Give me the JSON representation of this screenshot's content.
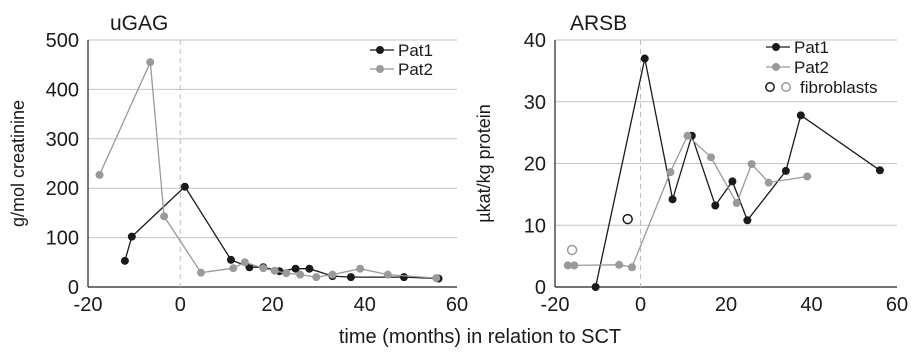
{
  "figure": {
    "shared_xlabel": "time (months) in relation to SCT"
  },
  "chart_data": [
    {
      "type": "line",
      "title": "uGAG",
      "xlabel": "",
      "ylabel": "g/mol creatinine",
      "xlim": [
        -20,
        60
      ],
      "ylim": [
        0,
        500
      ],
      "xticks": [
        -20,
        0,
        20,
        40,
        60
      ],
      "yticks": [
        0,
        100,
        200,
        300,
        400,
        500
      ],
      "grid": "horizontal",
      "reference_line_x": 0,
      "legend_position": "top-right",
      "series": [
        {
          "name": "Pat1",
          "color": "#1a1a1a",
          "marker": "filled-circle",
          "x": [
            -12,
            -10.5,
            1,
            11,
            15,
            18,
            21.5,
            25,
            28,
            33,
            37,
            48.5,
            56
          ],
          "y": [
            53,
            102,
            203,
            55,
            40,
            40,
            32,
            37,
            37,
            22,
            20,
            20,
            17
          ]
        },
        {
          "name": "Pat2",
          "color": "#9a9a9a",
          "marker": "filled-circle",
          "x": [
            -17.5,
            -6.5,
            -3.5,
            4.5,
            11.5,
            14,
            18,
            20.5,
            23,
            26,
            29.5,
            33,
            39,
            45,
            55.5
          ],
          "y": [
            227,
            455,
            143,
            29,
            38,
            50,
            38,
            33,
            28,
            25,
            20,
            25,
            37,
            25,
            18
          ]
        }
      ]
    },
    {
      "type": "line",
      "title": "ARSB",
      "xlabel": "",
      "ylabel": "µkat/kg protein",
      "xlim": [
        -20,
        60
      ],
      "ylim": [
        0,
        40
      ],
      "xticks": [
        -20,
        0,
        20,
        40,
        60
      ],
      "yticks": [
        0,
        10,
        20,
        30,
        40
      ],
      "grid": "horizontal",
      "reference_line_x": 0,
      "legend_position": "top-right",
      "series": [
        {
          "name": "Pat1",
          "color": "#1a1a1a",
          "marker": "filled-circle",
          "x": [
            -10.5,
            1,
            7.5,
            12,
            17.5,
            21.5,
            25,
            34,
            37.5,
            56
          ],
          "y": [
            0,
            37,
            14.2,
            24.5,
            13.2,
            17.1,
            10.8,
            18.8,
            27.8,
            18.9
          ]
        },
        {
          "name": "Pat2",
          "color": "#9a9a9a",
          "marker": "filled-circle",
          "x": [
            -17,
            -15.5,
            -5,
            -2,
            7,
            11,
            16.5,
            22.5,
            26,
            30,
            39
          ],
          "y": [
            3.5,
            3.5,
            3.6,
            3.2,
            18.6,
            24.5,
            21.0,
            13.6,
            19.9,
            16.9,
            17.9
          ]
        },
        {
          "name": "fibroblasts",
          "type": "scatter",
          "marker": "open-circle",
          "legend_colors": [
            "#1a1a1a",
            "#9a9a9a"
          ],
          "points": [
            {
              "x": -16,
              "y": 6,
              "color": "#9a9a9a"
            },
            {
              "x": -3,
              "y": 11,
              "color": "#1a1a1a"
            }
          ]
        }
      ]
    }
  ]
}
